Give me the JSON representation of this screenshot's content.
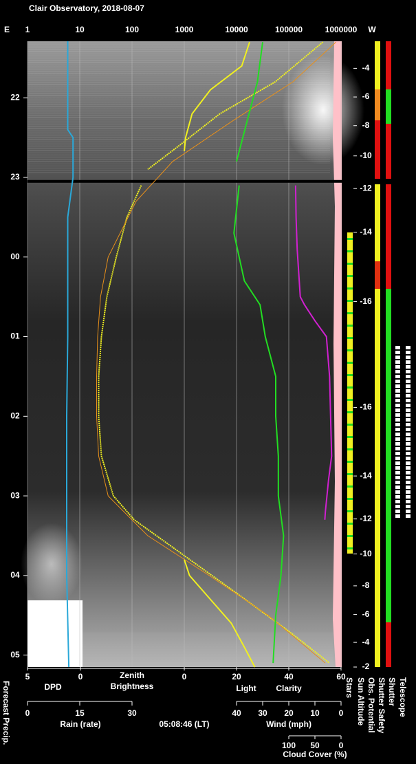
{
  "title": "Clair Observatory, 2018-08-07",
  "east": "E",
  "west": "W",
  "time": "05:08:46 (LT)",
  "forecast_label": "Forecast Precip.",
  "status_labels": [
    "Stars",
    "Sun Altitude",
    "Obs. Potential",
    "Shutter Safety",
    "Shutter",
    "Telescope"
  ],
  "chart_data": {
    "type": "observatory",
    "ylim": [
      21.29,
      29.15
    ],
    "yticks": [
      22,
      23,
      {
        "value": 24,
        "label": "00"
      },
      {
        "value": 25,
        "label": "01"
      },
      {
        "value": 26,
        "label": "02"
      },
      {
        "value": 27,
        "label": "03"
      },
      {
        "value": 28,
        "label": "04"
      },
      {
        "value": 29,
        "label": "05"
      }
    ],
    "xscale": "log",
    "xlim": [
      1,
      1000000
    ],
    "xticks": [
      1,
      10,
      100,
      1000,
      10000,
      100000,
      1000000
    ],
    "grid": true,
    "break": 23.05,
    "series": [
      {
        "name": "DPD",
        "color": "#2aa8d8",
        "xlim": [
          5,
          0
        ],
        "xticks": [
          5,
          0
        ],
        "x": [
          21.29,
          22.4,
          22.5,
          23.0,
          23.5,
          25.0,
          26.0,
          28.0,
          29.15
        ],
        "values": [
          1.2,
          1.2,
          0.7,
          0.7,
          1.2,
          1.2,
          1.3,
          1.3,
          1.1
        ]
      },
      {
        "name": "Zenith Brightness",
        "color": "#f0f020",
        "x": [
          21.3,
          21.8,
          22.2,
          22.6,
          22.9,
          23.05,
          23.1,
          23.5,
          24.0,
          24.5,
          25.0,
          25.5,
          26.0,
          26.5,
          27.0,
          27.3,
          27.7,
          28.2,
          28.7,
          29.1
        ],
        "values": [
          450000,
          55000,
          4800,
          800,
          200,
          null,
          150,
          80,
          50,
          33,
          26,
          23,
          23,
          26,
          44,
          110,
          780,
          9000,
          100000,
          600000
        ]
      },
      {
        "color": "#e8901a",
        "x": [
          21.3,
          21.8,
          22.3,
          22.8,
          23.3,
          24.0,
          24.5,
          25.0,
          25.5,
          26.0,
          26.5,
          27.0,
          27.5,
          28.0,
          28.5,
          29.1
        ],
        "values": [
          800000,
          120000,
          8000,
          600,
          120,
          35,
          25,
          22,
          21,
          21,
          23,
          35,
          200,
          3000,
          40000,
          500000
        ]
      },
      {
        "name": "Light",
        "color": "#f0f020",
        "xlim": [
          0,
          60
        ],
        "xticks": [
          0,
          20,
          40,
          60
        ],
        "x": [
          21.3,
          21.6,
          21.9,
          22.2,
          22.5,
          22.67,
          22.7,
          27.8,
          28.0,
          28.3,
          28.6,
          28.9,
          29.15
        ],
        "values": [
          25,
          22,
          10,
          3,
          0.5,
          0,
          null,
          0,
          2,
          10,
          18,
          23,
          27
        ]
      },
      {
        "name": "Clarity",
        "color": "#22dd22",
        "xlim": [
          0,
          60
        ],
        "x": [
          21.3,
          21.8,
          22.3,
          22.8,
          23.05,
          23.1,
          23.7,
          24.0,
          24.3,
          24.6,
          25.0,
          25.5,
          26.0,
          26.5,
          27.0,
          27.5,
          28.0,
          28.5,
          29.1
        ],
        "values": [
          30,
          28,
          24,
          20,
          null,
          21,
          19,
          21,
          23,
          29,
          31,
          35,
          35,
          36,
          36,
          38,
          37,
          35,
          34
        ]
      },
      {
        "name": "Cloud Cover (%)",
        "color": "#d020d0",
        "xlim": [
          100,
          0
        ],
        "xticks": [
          100,
          50,
          0
        ],
        "x": [
          23.1,
          23.5,
          23.9,
          24.5,
          24.6,
          24.8,
          25.0,
          25.5,
          26.0,
          26.5,
          26.8,
          27.2,
          27.3
        ],
        "values": [
          87,
          86,
          84,
          78,
          70,
          50,
          28,
          22,
          20,
          18,
          24,
          30,
          31
        ]
      }
    ],
    "axes": [
      {
        "label": "Rain (rate)",
        "color": "#3ad8e8",
        "xlim": [
          0,
          30
        ],
        "xticks": [
          0,
          15,
          30
        ]
      },
      {
        "label": "Wind (mph)",
        "color": "#f4a6c0",
        "xlim": [
          40,
          0
        ],
        "xticks": [
          40,
          30,
          20,
          10,
          0
        ]
      }
    ],
    "sun_altitude": {
      "x": [
        21.63,
        21.99,
        22.35,
        22.73,
        23.14,
        23.69,
        24.56,
        25.89,
        26.75,
        27.29,
        27.73,
        28.13,
        28.49,
        28.84,
        29.15
      ],
      "values": [
        -4,
        -6,
        -8,
        -10,
        -12,
        -14,
        -16,
        -16,
        -14,
        -12,
        -10,
        -8,
        -6,
        -4,
        -2
      ]
    }
  }
}
